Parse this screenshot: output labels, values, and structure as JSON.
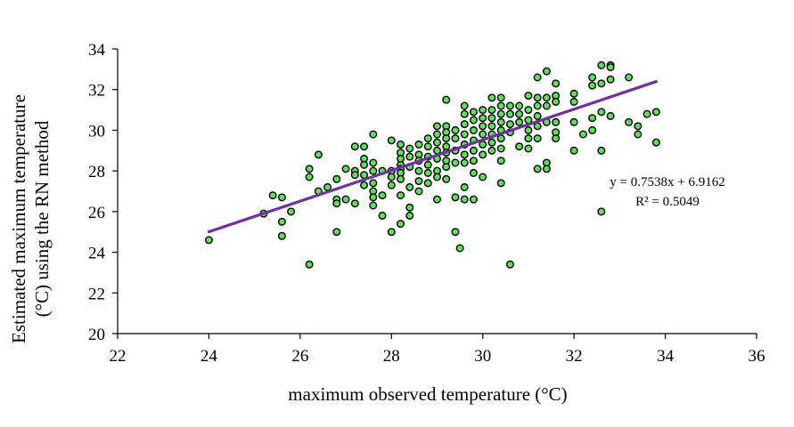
{
  "chart_data": {
    "type": "scatter",
    "title": "",
    "xlabel": "maximum observed temperature (°C)",
    "ylabel_line1": "Estimated maximum temperature",
    "ylabel_line2": "(°C) using the RN method",
    "xlim": [
      22,
      36
    ],
    "ylim": [
      20,
      34
    ],
    "xticks": [
      22,
      24,
      26,
      28,
      30,
      32,
      34,
      36
    ],
    "yticks": [
      20,
      22,
      24,
      26,
      28,
      30,
      32,
      34
    ],
    "x_tick_labels": [
      "22",
      "24",
      "26",
      "28",
      "30",
      "32",
      "34",
      "36"
    ],
    "y_tick_labels": [
      "20",
      "22",
      "24",
      "26",
      "28",
      "30",
      "32",
      "34"
    ],
    "grid": false,
    "legend": "none",
    "marker_fill": "#5fe05a",
    "marker_edge": "#000000",
    "trendline": {
      "slope": 0.7538,
      "intercept": 6.9162,
      "x_range": [
        24,
        33.8
      ],
      "color": "#7030a0",
      "equation_label": "y = 0.7538x + 6.9162",
      "r2_label": "R² = 0.5049"
    },
    "points": [
      [
        24.0,
        24.6
      ],
      [
        25.2,
        25.9
      ],
      [
        25.4,
        26.8
      ],
      [
        25.6,
        26.7
      ],
      [
        25.6,
        25.5
      ],
      [
        25.6,
        24.8
      ],
      [
        25.8,
        26.0
      ],
      [
        26.2,
        28.1
      ],
      [
        26.2,
        27.7
      ],
      [
        26.2,
        23.4
      ],
      [
        26.4,
        28.8
      ],
      [
        26.4,
        27.0
      ],
      [
        26.6,
        27.2
      ],
      [
        26.8,
        27.6
      ],
      [
        26.8,
        26.6
      ],
      [
        26.8,
        26.4
      ],
      [
        26.8,
        25.0
      ],
      [
        27.0,
        28.1
      ],
      [
        27.0,
        26.6
      ],
      [
        27.2,
        29.2
      ],
      [
        27.2,
        28.0
      ],
      [
        27.2,
        27.8
      ],
      [
        27.2,
        26.4
      ],
      [
        27.4,
        29.2
      ],
      [
        27.4,
        28.6
      ],
      [
        27.4,
        28.3
      ],
      [
        27.4,
        27.8
      ],
      [
        27.4,
        27.3
      ],
      [
        27.6,
        29.8
      ],
      [
        27.6,
        28.4
      ],
      [
        27.6,
        28.0
      ],
      [
        27.6,
        27.4
      ],
      [
        27.6,
        27.0
      ],
      [
        27.6,
        26.7
      ],
      [
        27.6,
        26.3
      ],
      [
        27.8,
        28.0
      ],
      [
        27.8,
        26.8
      ],
      [
        27.8,
        25.8
      ],
      [
        28.0,
        29.5
      ],
      [
        28.0,
        28.0
      ],
      [
        28.0,
        27.7
      ],
      [
        28.0,
        27.3
      ],
      [
        28.0,
        25.0
      ],
      [
        28.2,
        29.3
      ],
      [
        28.2,
        28.9
      ],
      [
        28.2,
        28.6
      ],
      [
        28.2,
        28.3
      ],
      [
        28.2,
        28.1
      ],
      [
        28.2,
        27.9
      ],
      [
        28.2,
        27.6
      ],
      [
        28.2,
        26.8
      ],
      [
        28.2,
        25.4
      ],
      [
        28.4,
        29.1
      ],
      [
        28.4,
        28.7
      ],
      [
        28.4,
        28.2
      ],
      [
        28.4,
        27.2
      ],
      [
        28.4,
        26.2
      ],
      [
        28.4,
        25.8
      ],
      [
        28.6,
        29.3
      ],
      [
        28.6,
        28.8
      ],
      [
        28.6,
        28.5
      ],
      [
        28.6,
        28.0
      ],
      [
        28.6,
        27.5
      ],
      [
        28.6,
        27.0
      ],
      [
        28.8,
        29.6
      ],
      [
        28.8,
        29.2
      ],
      [
        28.8,
        28.7
      ],
      [
        28.8,
        28.3
      ],
      [
        28.8,
        27.9
      ],
      [
        28.8,
        27.4
      ],
      [
        29.0,
        30.2
      ],
      [
        29.0,
        29.8
      ],
      [
        29.0,
        29.4
      ],
      [
        29.0,
        29.0
      ],
      [
        29.0,
        28.6
      ],
      [
        29.0,
        28.0
      ],
      [
        29.0,
        27.7
      ],
      [
        29.0,
        26.6
      ],
      [
        29.2,
        31.5
      ],
      [
        29.2,
        30.2
      ],
      [
        29.2,
        29.9
      ],
      [
        29.2,
        29.6
      ],
      [
        29.2,
        29.2
      ],
      [
        29.2,
        28.9
      ],
      [
        29.2,
        28.5
      ],
      [
        29.2,
        28.2
      ],
      [
        29.2,
        27.6
      ],
      [
        29.4,
        30.0
      ],
      [
        29.4,
        29.6
      ],
      [
        29.4,
        29.0
      ],
      [
        29.4,
        28.4
      ],
      [
        29.4,
        26.7
      ],
      [
        29.4,
        25.0
      ],
      [
        29.5,
        24.2
      ],
      [
        29.6,
        31.2
      ],
      [
        29.6,
        30.8
      ],
      [
        29.6,
        30.3
      ],
      [
        29.6,
        29.8
      ],
      [
        29.6,
        29.3
      ],
      [
        29.6,
        28.8
      ],
      [
        29.6,
        28.4
      ],
      [
        29.6,
        27.2
      ],
      [
        29.6,
        26.6
      ],
      [
        29.8,
        30.9
      ],
      [
        29.8,
        30.5
      ],
      [
        29.8,
        30.0
      ],
      [
        29.8,
        29.5
      ],
      [
        29.8,
        29.0
      ],
      [
        29.8,
        28.5
      ],
      [
        29.8,
        27.9
      ],
      [
        29.8,
        26.6
      ],
      [
        30.0,
        31.0
      ],
      [
        30.0,
        30.6
      ],
      [
        30.0,
        30.2
      ],
      [
        30.0,
        29.8
      ],
      [
        30.0,
        29.3
      ],
      [
        30.0,
        28.8
      ],
      [
        30.0,
        27.7
      ],
      [
        30.2,
        31.6
      ],
      [
        30.2,
        31.0
      ],
      [
        30.2,
        30.6
      ],
      [
        30.2,
        30.2
      ],
      [
        30.2,
        29.8
      ],
      [
        30.2,
        29.4
      ],
      [
        30.2,
        29.0
      ],
      [
        30.4,
        31.6
      ],
      [
        30.4,
        31.2
      ],
      [
        30.4,
        30.8
      ],
      [
        30.4,
        30.4
      ],
      [
        30.4,
        30.0
      ],
      [
        30.4,
        29.6
      ],
      [
        30.4,
        29.1
      ],
      [
        30.4,
        28.5
      ],
      [
        30.4,
        27.4
      ],
      [
        30.6,
        31.2
      ],
      [
        30.6,
        30.8
      ],
      [
        30.6,
        30.3
      ],
      [
        30.6,
        29.9
      ],
      [
        30.6,
        23.4
      ],
      [
        30.8,
        31.2
      ],
      [
        30.8,
        30.8
      ],
      [
        30.8,
        30.4
      ],
      [
        30.8,
        29.2
      ],
      [
        31.0,
        31.7
      ],
      [
        31.0,
        31.0
      ],
      [
        31.0,
        30.5
      ],
      [
        31.0,
        30.0
      ],
      [
        31.0,
        29.6
      ],
      [
        31.0,
        29.1
      ],
      [
        31.2,
        32.6
      ],
      [
        31.2,
        31.6
      ],
      [
        31.2,
        31.2
      ],
      [
        31.2,
        30.7
      ],
      [
        31.2,
        30.2
      ],
      [
        31.2,
        29.6
      ],
      [
        31.2,
        28.1
      ],
      [
        31.4,
        32.9
      ],
      [
        31.4,
        31.6
      ],
      [
        31.4,
        31.2
      ],
      [
        31.4,
        30.4
      ],
      [
        31.4,
        28.4
      ],
      [
        31.4,
        28.1
      ],
      [
        31.6,
        32.3
      ],
      [
        31.6,
        31.7
      ],
      [
        31.6,
        31.4
      ],
      [
        31.6,
        30.4
      ],
      [
        31.6,
        29.9
      ],
      [
        31.6,
        29.6
      ],
      [
        32.0,
        31.8
      ],
      [
        32.0,
        31.4
      ],
      [
        32.0,
        30.4
      ],
      [
        32.0,
        29.0
      ],
      [
        32.2,
        29.8
      ],
      [
        32.4,
        32.6
      ],
      [
        32.4,
        32.2
      ],
      [
        32.4,
        30.6
      ],
      [
        32.4,
        30.0
      ],
      [
        32.6,
        33.2
      ],
      [
        32.6,
        32.3
      ],
      [
        32.6,
        30.9
      ],
      [
        32.6,
        29.0
      ],
      [
        32.6,
        26.0
      ],
      [
        32.8,
        33.2
      ],
      [
        32.8,
        33.1
      ],
      [
        32.8,
        32.5
      ],
      [
        32.8,
        30.7
      ],
      [
        33.2,
        32.6
      ],
      [
        33.2,
        30.4
      ],
      [
        33.4,
        30.2
      ],
      [
        33.4,
        29.8
      ],
      [
        33.6,
        30.8
      ],
      [
        33.8,
        30.9
      ],
      [
        33.8,
        29.4
      ]
    ]
  }
}
